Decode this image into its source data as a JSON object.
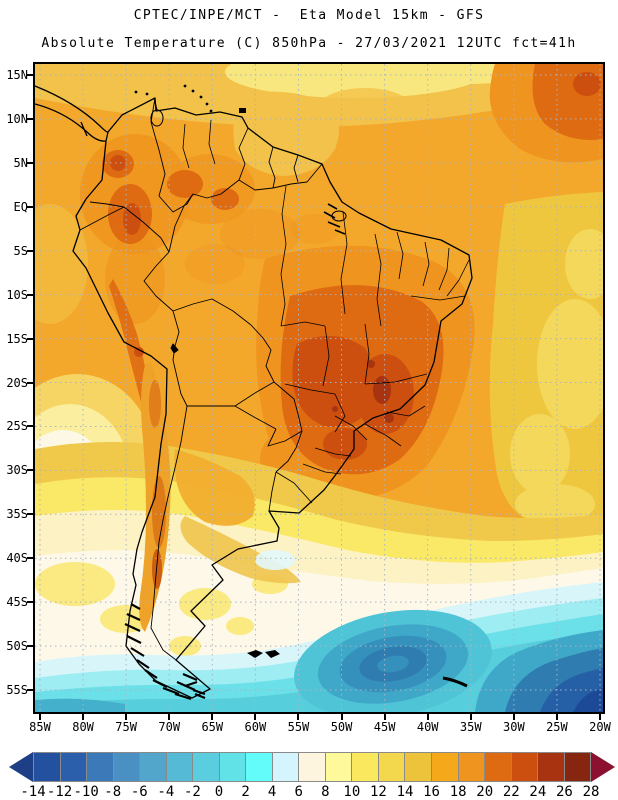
{
  "header": {
    "title_line1": "CPTEC/INPE/MCT -  Eta Model 15km - GFS",
    "title_line2": "Absolute Temperature (C) 850hPa - 27/03/2021 12UTC fct=41h"
  },
  "map": {
    "region": "South America",
    "lat_labels": [
      "15N",
      "10N",
      "5N",
      "EQ",
      "5S",
      "10S",
      "15S",
      "20S",
      "25S",
      "30S",
      "35S",
      "40S",
      "45S",
      "50S",
      "55S"
    ],
    "lon_labels": [
      "85W",
      "80W",
      "75W",
      "70W",
      "65W",
      "60W",
      "55W",
      "50W",
      "45W",
      "40W",
      "35W",
      "30W",
      "25W",
      "20W"
    ]
  },
  "colorbar": {
    "unit": "C",
    "tick_labels": [
      "-14",
      "-12",
      "-10",
      "-8",
      "-6",
      "-4",
      "-2",
      "0",
      "2",
      "4",
      "6",
      "8",
      "10",
      "12",
      "14",
      "16",
      "18",
      "20",
      "22",
      "24",
      "26",
      "28"
    ],
    "segment_colors": [
      "#2450A0",
      "#2B5FAB",
      "#3B79B8",
      "#4A90C2",
      "#52A6CC",
      "#55BAD5",
      "#5ACEDE",
      "#60E2E6",
      "#64FBFB",
      "#D4F5FD",
      "#FDF5DE",
      "#FEFA9C",
      "#FAE95F",
      "#F3D74D",
      "#ECC33A",
      "#F4A81A",
      "#EF941E",
      "#DE6A12",
      "#CC4F10",
      "#A73310",
      "#862610"
    ],
    "under_range_arrow_color": "#1E3F85",
    "over_range_arrow_color": "#8C1030"
  }
}
